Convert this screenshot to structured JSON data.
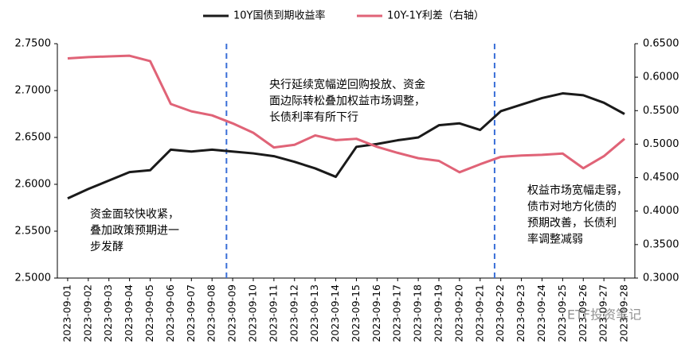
{
  "chart_data": {
    "type": "line",
    "categories": [
      "2023-09-01",
      "2023-09-02",
      "2023-09-03",
      "2023-09-04",
      "2023-09-05",
      "2023-09-06",
      "2023-09-07",
      "2023-09-08",
      "2023-09-09",
      "2023-09-10",
      "2023-09-11",
      "2023-09-12",
      "2023-09-13",
      "2023-09-14",
      "2023-09-15",
      "2023-09-16",
      "2023-09-17",
      "2023-09-18",
      "2023-09-19",
      "2023-09-20",
      "2023-09-21",
      "2023-09-22",
      "2023-09-23",
      "2023-09-24",
      "2023-09-25",
      "2023-09-26",
      "2023-09-27",
      "2023-09-28"
    ],
    "series": [
      {
        "name": "10Y国债到期收益率",
        "color": "#1a1a1a",
        "values": [
          2.585,
          2.595,
          2.604,
          2.613,
          2.615,
          2.637,
          2.635,
          2.637,
          2.635,
          2.633,
          2.63,
          2.624,
          2.617,
          2.608,
          2.64,
          2.643,
          2.647,
          2.65,
          2.663,
          2.665,
          2.658,
          2.678,
          2.685,
          2.692,
          2.697,
          2.695,
          2.687,
          2.675
        ]
      },
      {
        "name": "10Y-1Y利差（右轴）",
        "color": "#e06377",
        "axis": "y2",
        "values": [
          0.628,
          0.63,
          0.631,
          0.632,
          0.624,
          0.56,
          0.549,
          0.543,
          0.531,
          0.517,
          0.495,
          0.499,
          0.513,
          0.506,
          0.508,
          0.496,
          0.487,
          0.479,
          0.475,
          0.458,
          0.47,
          0.481,
          0.483,
          0.484,
          0.486,
          0.464,
          0.482,
          0.508
        ]
      }
    ],
    "ylim": [
      2.5,
      2.75
    ],
    "yticks": [
      {
        "value": 2.5,
        "label": "2.5000"
      },
      {
        "value": 2.55,
        "label": "2.5500"
      },
      {
        "value": 2.6,
        "label": "2.6000"
      },
      {
        "value": 2.65,
        "label": "2.6500"
      },
      {
        "value": 2.7,
        "label": "2.7000"
      },
      {
        "value": 2.75,
        "label": "2.7500"
      }
    ],
    "y2lim": [
      0.3,
      0.65
    ],
    "y2ticks": [
      {
        "value": 0.3,
        "label": "0.3000"
      },
      {
        "value": 0.35,
        "label": "0.3500"
      },
      {
        "value": 0.4,
        "label": "0.4000"
      },
      {
        "value": 0.45,
        "label": "0.4500"
      },
      {
        "value": 0.5,
        "label": "0.5000"
      },
      {
        "value": 0.55,
        "label": "0.5500"
      },
      {
        "value": 0.6,
        "label": "0.6000"
      },
      {
        "value": 0.65,
        "label": "0.6500"
      }
    ],
    "vlines": [
      "2023-09-09",
      "2023-09-22"
    ],
    "annotations": [
      [
        "央行延续宽幅逆回购投放、资金",
        "面边际转松叠加权益市场调整，",
        "长债利率有所下行"
      ],
      [
        "资金面较快收紧，",
        "叠加政策预期进一",
        "步发酵"
      ],
      [
        "权益市场宽幅走弱，",
        "债市对地方化债的",
        "预期改善，长债利",
        "率调整减弱"
      ]
    ],
    "watermark": "ETF投资笔记",
    "legend": "top"
  }
}
